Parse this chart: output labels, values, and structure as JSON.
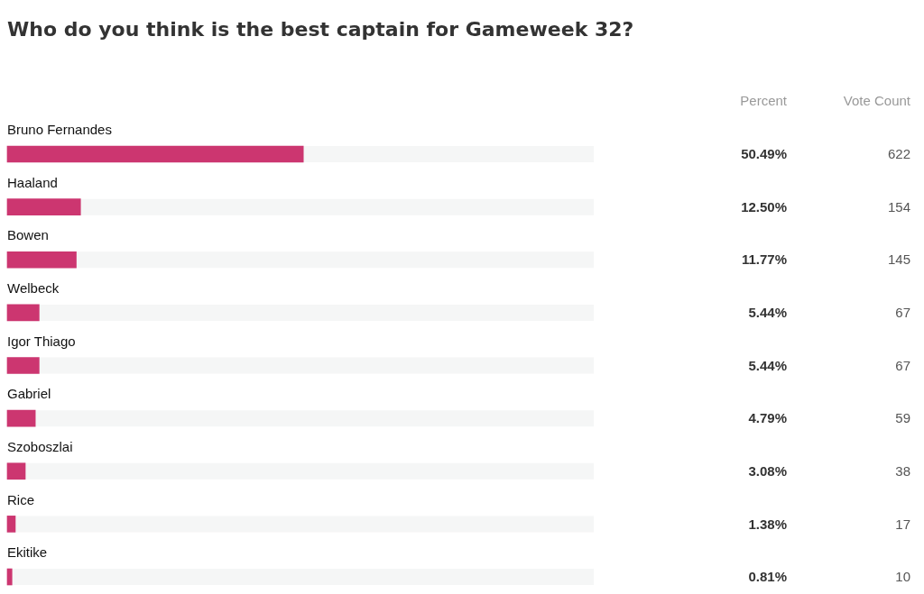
{
  "chart_data": {
    "type": "bar",
    "orientation": "horizontal",
    "title": "Who do you think is the best captain for Gameweek 32?",
    "categories": [
      "Bruno Fernandes",
      "Haaland",
      "Bowen",
      "Welbeck",
      "Igor Thiago",
      "Gabriel",
      "Szoboszlai",
      "Rice",
      "Ekitike"
    ],
    "values": [
      50.49,
      12.5,
      11.77,
      5.44,
      5.44,
      4.79,
      3.08,
      1.38,
      0.81
    ],
    "value_labels": [
      "50.49%",
      "12.50%",
      "11.77%",
      "5.44%",
      "5.44%",
      "4.79%",
      "3.08%",
      "1.38%",
      "0.81%"
    ],
    "color": "#cc3670",
    "xlim": [
      0,
      100
    ],
    "tick_labels": "y",
    "legend": false,
    "annotations": [
      "Percent",
      "Vote Count",
      "622",
      "154",
      "145",
      "67",
      "67",
      "59",
      "38",
      "17",
      "10"
    ]
  }
}
